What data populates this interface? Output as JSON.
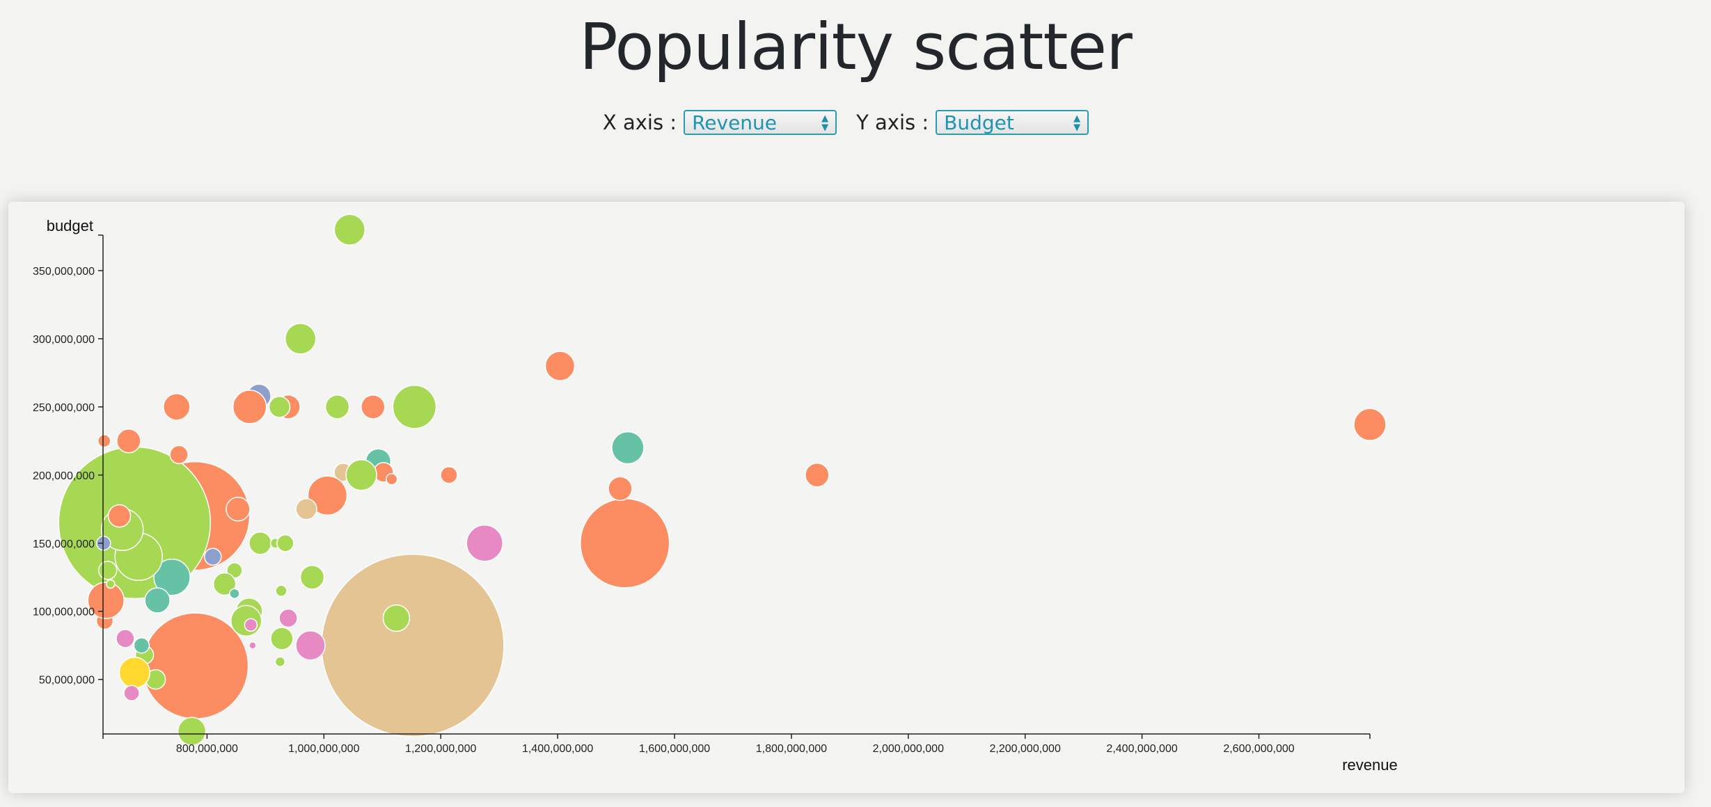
{
  "header": {
    "title": "Popularity scatter"
  },
  "controls": {
    "x_label": "X axis :",
    "x_value": "Revenue",
    "y_label": "Y axis :",
    "y_value": "Budget"
  },
  "chart_data": {
    "type": "scatter",
    "xlabel": "revenue",
    "ylabel": "budget",
    "xlim": [
      622000000,
      2790000000
    ],
    "ylim": [
      10000000,
      375000000
    ],
    "x_ticks": [
      800000000,
      1000000000,
      1200000000,
      1400000000,
      1600000000,
      1800000000,
      2000000000,
      2200000000,
      2400000000,
      2600000000
    ],
    "x_tick_labels": [
      "800,000,000",
      "1,000,000,000",
      "1,200,000,000",
      "1,400,000,000",
      "1,600,000,000",
      "1,800,000,000",
      "2,000,000,000",
      "2,200,000,000",
      "2,400,000,000",
      "2,600,000,000"
    ],
    "y_ticks": [
      50000000,
      100000000,
      150000000,
      200000000,
      250000000,
      300000000,
      350000000
    ],
    "y_tick_labels": [
      "50,000,000",
      "100,000,000",
      "150,000,000",
      "200,000,000",
      "250,000,000",
      "300,000,000",
      "350,000,000"
    ],
    "grid": false,
    "colors": {
      "orange": "#fc8d62",
      "green": "#a6d854",
      "teal": "#66c2a5",
      "pink": "#e78ac3",
      "blue": "#8da0cb",
      "tan": "#e5c494",
      "yellow": "#ffd92f"
    },
    "points": [
      {
        "x": 1152000000,
        "y": 75000000,
        "size": 131,
        "color": "tan"
      },
      {
        "x": 780000000,
        "y": 60000000,
        "size": 76,
        "color": "orange"
      },
      {
        "x": 780000000,
        "y": 170000000,
        "size": 78,
        "color": "orange"
      },
      {
        "x": 676000000,
        "y": 165000000,
        "size": 109,
        "color": "green"
      },
      {
        "x": 1515000000,
        "y": 150000000,
        "size": 64,
        "color": "orange"
      },
      {
        "x": 740000000,
        "y": 125000000,
        "size": 26,
        "color": "teal"
      },
      {
        "x": 715000000,
        "y": 108000000,
        "size": 18,
        "color": "teal"
      },
      {
        "x": 1044000000,
        "y": 380000000,
        "size": 22,
        "color": "green"
      },
      {
        "x": 960000000,
        "y": 300000000,
        "size": 22,
        "color": "green"
      },
      {
        "x": 1404000000,
        "y": 280000000,
        "size": 21,
        "color": "orange"
      },
      {
        "x": 2790000000,
        "y": 237000000,
        "size": 23,
        "color": "orange"
      },
      {
        "x": 1520000000,
        "y": 220000000,
        "size": 23,
        "color": "teal"
      },
      {
        "x": 1844000000,
        "y": 200000000,
        "size": 17,
        "color": "orange"
      },
      {
        "x": 1507000000,
        "y": 190000000,
        "size": 17,
        "color": "orange"
      },
      {
        "x": 1214000000,
        "y": 200000000,
        "size": 12,
        "color": "orange"
      },
      {
        "x": 1275000000,
        "y": 150000000,
        "size": 26,
        "color": "pink"
      },
      {
        "x": 1155000000,
        "y": 250000000,
        "size": 31,
        "color": "green"
      },
      {
        "x": 1084000000,
        "y": 250000000,
        "size": 17,
        "color": "orange"
      },
      {
        "x": 1023000000,
        "y": 250000000,
        "size": 17,
        "color": "green"
      },
      {
        "x": 889000000,
        "y": 258000000,
        "size": 17,
        "color": "blue"
      },
      {
        "x": 883000000,
        "y": 248000000,
        "size": 16,
        "color": "pink"
      },
      {
        "x": 873000000,
        "y": 250000000,
        "size": 24,
        "color": "orange"
      },
      {
        "x": 939000000,
        "y": 250000000,
        "size": 17,
        "color": "orange"
      },
      {
        "x": 924000000,
        "y": 250000000,
        "size": 15,
        "color": "green"
      },
      {
        "x": 748000000,
        "y": 250000000,
        "size": 19,
        "color": "orange"
      },
      {
        "x": 1093000000,
        "y": 210000000,
        "size": 18,
        "color": "teal"
      },
      {
        "x": 1102000000,
        "y": 202000000,
        "size": 14,
        "color": "orange"
      },
      {
        "x": 1116000000,
        "y": 197000000,
        "size": 8,
        "color": "orange"
      },
      {
        "x": 1033000000,
        "y": 202000000,
        "size": 13,
        "color": "tan"
      },
      {
        "x": 1064000000,
        "y": 200000000,
        "size": 22,
        "color": "green"
      },
      {
        "x": 1006000000,
        "y": 185000000,
        "size": 28,
        "color": "orange"
      },
      {
        "x": 970000000,
        "y": 175000000,
        "size": 15,
        "color": "tan"
      },
      {
        "x": 853000000,
        "y": 175000000,
        "size": 17,
        "color": "orange"
      },
      {
        "x": 891000000,
        "y": 150000000,
        "size": 16,
        "color": "green"
      },
      {
        "x": 917000000,
        "y": 150000000,
        "size": 7,
        "color": "green"
      },
      {
        "x": 934000000,
        "y": 150000000,
        "size": 12,
        "color": "green"
      },
      {
        "x": 810000000,
        "y": 140000000,
        "size": 12,
        "color": "blue"
      },
      {
        "x": 847000000,
        "y": 130000000,
        "size": 11,
        "color": "green"
      },
      {
        "x": 830000000,
        "y": 120000000,
        "size": 16,
        "color": "green"
      },
      {
        "x": 847000000,
        "y": 113000000,
        "size": 7,
        "color": "teal"
      },
      {
        "x": 980000000,
        "y": 125000000,
        "size": 17,
        "color": "green"
      },
      {
        "x": 927000000,
        "y": 115000000,
        "size": 8,
        "color": "green"
      },
      {
        "x": 872000000,
        "y": 100000000,
        "size": 19,
        "color": "green"
      },
      {
        "x": 867000000,
        "y": 93000000,
        "size": 22,
        "color": "green"
      },
      {
        "x": 875000000,
        "y": 90000000,
        "size": 9,
        "color": "pink"
      },
      {
        "x": 939000000,
        "y": 95000000,
        "size": 13,
        "color": "pink"
      },
      {
        "x": 1124000000,
        "y": 95000000,
        "size": 19,
        "color": "green"
      },
      {
        "x": 977000000,
        "y": 75000000,
        "size": 21,
        "color": "pink"
      },
      {
        "x": 928000000,
        "y": 80000000,
        "size": 16,
        "color": "green"
      },
      {
        "x": 878000000,
        "y": 75000000,
        "size": 5,
        "color": "pink"
      },
      {
        "x": 925000000,
        "y": 63000000,
        "size": 7,
        "color": "green"
      },
      {
        "x": 660000000,
        "y": 80000000,
        "size": 13,
        "color": "pink"
      },
      {
        "x": 693000000,
        "y": 68000000,
        "size": 13,
        "color": "green"
      },
      {
        "x": 688000000,
        "y": 75000000,
        "size": 11,
        "color": "teal"
      },
      {
        "x": 712000000,
        "y": 50000000,
        "size": 14,
        "color": "green"
      },
      {
        "x": 676000000,
        "y": 55000000,
        "size": 22,
        "color": "yellow"
      },
      {
        "x": 671000000,
        "y": 40000000,
        "size": 11,
        "color": "pink"
      },
      {
        "x": 625000000,
        "y": 93000000,
        "size": 12,
        "color": "orange"
      },
      {
        "x": 627000000,
        "y": 108000000,
        "size": 26,
        "color": "orange"
      },
      {
        "x": 683000000,
        "y": 140000000,
        "size": 34,
        "color": "green"
      },
      {
        "x": 655000000,
        "y": 160000000,
        "size": 30,
        "color": "green"
      },
      {
        "x": 650000000,
        "y": 170000000,
        "size": 16,
        "color": "orange"
      },
      {
        "x": 623000000,
        "y": 150000000,
        "size": 10,
        "color": "blue"
      },
      {
        "x": 630000000,
        "y": 130000000,
        "size": 13,
        "color": "green"
      },
      {
        "x": 635000000,
        "y": 120000000,
        "size": 6,
        "color": "green"
      },
      {
        "x": 666000000,
        "y": 225000000,
        "size": 17,
        "color": "orange"
      },
      {
        "x": 624000000,
        "y": 225000000,
        "size": 9,
        "color": "orange"
      },
      {
        "x": 752000000,
        "y": 215000000,
        "size": 13,
        "color": "orange"
      },
      {
        "x": 774000000,
        "y": 12000000,
        "size": 20,
        "color": "green"
      }
    ]
  }
}
